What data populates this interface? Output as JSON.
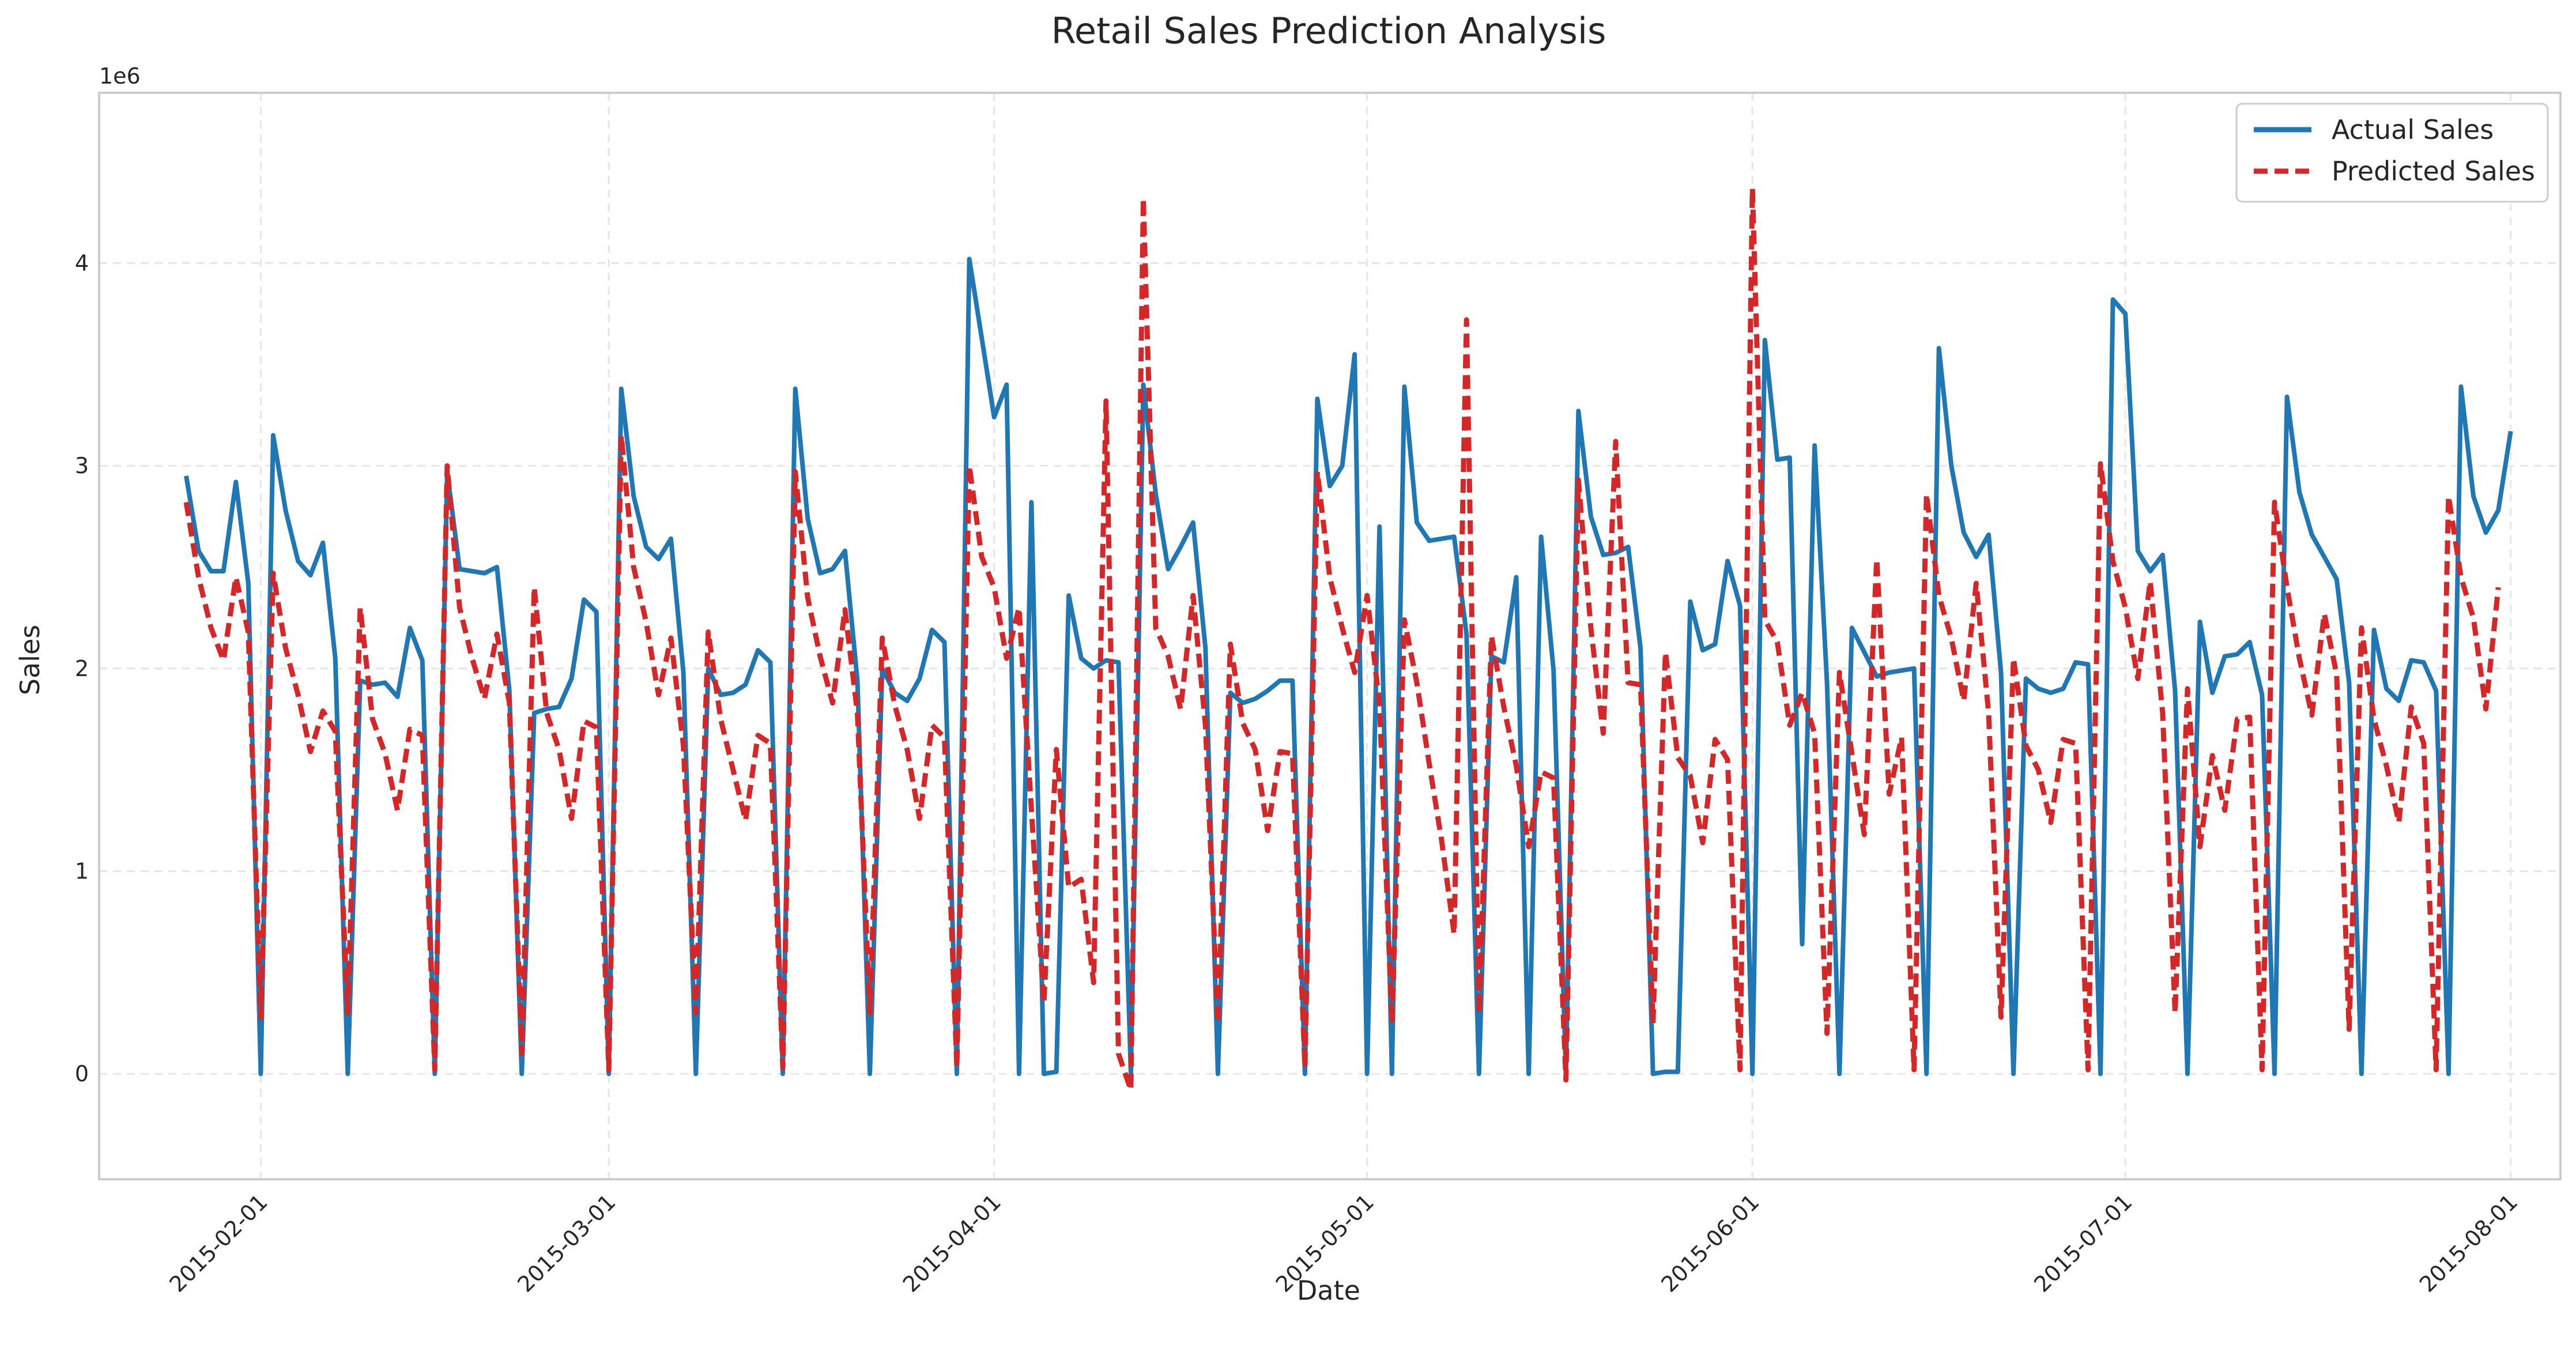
{
  "chart_data": {
    "type": "line",
    "title": "Retail Sales Prediction Analysis",
    "xlabel": "Date",
    "ylabel": "Sales",
    "y_multiplier_label": "1e6",
    "xlim": [
      "2015-01-19",
      "2015-08-05"
    ],
    "ylim": [
      -0.52,
      4.84
    ],
    "x_ticks": [
      "2015-02-01",
      "2015-03-01",
      "2015-04-01",
      "2015-05-01",
      "2015-06-01",
      "2015-07-01",
      "2015-08-01"
    ],
    "y_ticks": [
      0,
      1,
      2,
      3,
      4
    ],
    "grid": true,
    "legend_position": "top-right",
    "x_start": "2015-01-26",
    "series": [
      {
        "name": "Actual Sales",
        "color": "#1f77b4",
        "style": "solid",
        "values": [
          2.95,
          2.58,
          2.48,
          2.48,
          2.92,
          2.42,
          0,
          3.15,
          2.78,
          2.53,
          2.46,
          2.62,
          2.05,
          0,
          1.94,
          1.92,
          1.93,
          1.86,
          2.2,
          2.04,
          0,
          2.97,
          2.49,
          2.48,
          2.47,
          2.5,
          1.89,
          0,
          1.78,
          1.8,
          1.81,
          1.95,
          2.34,
          2.28,
          0,
          3.38,
          2.85,
          2.6,
          2.54,
          2.64,
          1.98,
          0,
          2.0,
          1.87,
          1.88,
          1.92,
          2.09,
          2.03,
          0,
          3.38,
          2.74,
          2.47,
          2.49,
          2.58,
          1.94,
          0,
          2.0,
          1.88,
          1.84,
          1.95,
          2.19,
          2.13,
          0,
          4.02,
          3.63,
          3.24,
          3.4,
          0,
          2.82,
          0,
          0.01,
          2.36,
          2.05,
          2.0,
          2.04,
          2.03,
          0,
          3.4,
          2.86,
          2.49,
          2.6,
          2.72,
          2.1,
          0,
          1.88,
          1.83,
          1.85,
          1.89,
          1.94,
          1.94,
          0,
          3.33,
          2.9,
          3.0,
          3.55,
          0,
          2.7,
          0,
          3.39,
          2.72,
          2.63,
          2.64,
          2.65,
          2.17,
          0,
          2.06,
          2.03,
          2.45,
          0,
          2.65,
          1.99,
          0,
          3.27,
          2.75,
          2.56,
          2.57,
          2.6,
          2.1,
          0,
          0.01,
          0.01,
          2.33,
          2.09,
          2.12,
          2.53,
          2.31,
          0,
          3.62,
          3.03,
          3.04,
          0.64,
          3.1,
          1.93,
          0,
          2.2,
          2.08,
          1.96,
          1.98,
          1.99,
          2.0,
          0,
          3.58,
          3.0,
          2.67,
          2.55,
          2.66,
          1.98,
          0,
          1.95,
          1.9,
          1.88,
          1.9,
          2.03,
          2.02,
          0,
          3.82,
          3.75,
          2.58,
          2.48,
          2.56,
          1.89,
          0,
          2.23,
          1.88,
          2.06,
          2.07,
          2.13,
          1.87,
          0,
          3.34,
          2.87,
          2.66,
          2.55,
          2.44,
          1.93,
          0,
          2.19,
          1.9,
          1.84,
          2.04,
          2.03,
          1.89,
          0,
          3.39,
          2.85,
          2.67,
          2.78,
          3.17
        ]
      },
      {
        "name": "Predicted Sales",
        "color": "#d62728",
        "style": "dashed",
        "values": [
          2.82,
          2.45,
          2.2,
          2.04,
          2.45,
          2.18,
          0.28,
          2.47,
          2.1,
          1.87,
          1.59,
          1.79,
          1.69,
          0.3,
          2.3,
          1.75,
          1.58,
          1.3,
          1.7,
          1.67,
          0.02,
          3.0,
          2.3,
          2.05,
          1.85,
          2.17,
          1.83,
          0.1,
          2.4,
          1.78,
          1.6,
          1.26,
          1.74,
          1.71,
          0.02,
          3.15,
          2.5,
          2.23,
          1.87,
          2.15,
          1.62,
          0.3,
          2.18,
          1.75,
          1.5,
          1.25,
          1.67,
          1.63,
          0.03,
          2.97,
          2.35,
          2.06,
          1.83,
          2.29,
          1.78,
          0.3,
          2.15,
          1.82,
          1.6,
          1.26,
          1.72,
          1.66,
          0.03,
          3.0,
          2.55,
          2.4,
          2.05,
          2.3,
          1.3,
          0.35,
          1.6,
          0.92,
          0.96,
          0.45,
          3.32,
          0.1,
          -0.08,
          4.32,
          2.2,
          2.06,
          1.8,
          2.36,
          1.72,
          0.25,
          2.12,
          1.73,
          1.6,
          1.2,
          1.59,
          1.58,
          0.03,
          2.97,
          2.45,
          2.2,
          1.98,
          2.36,
          1.82,
          0.25,
          2.24,
          1.93,
          1.53,
          1.15,
          0.69,
          3.72,
          0.3,
          2.16,
          1.81,
          1.52,
          1.12,
          1.49,
          1.46,
          -0.03,
          2.93,
          2.2,
          1.68,
          3.12,
          1.93,
          1.92,
          0.25,
          2.08,
          1.56,
          1.47,
          1.14,
          1.65,
          1.55,
          0.02,
          4.37,
          2.24,
          2.13,
          1.72,
          1.88,
          1.68,
          0.2,
          1.98,
          1.58,
          1.18,
          2.54,
          1.38,
          1.66,
          0.02,
          2.86,
          2.36,
          2.15,
          1.84,
          2.42,
          1.78,
          0.28,
          2.05,
          1.62,
          1.5,
          1.24,
          1.65,
          1.63,
          0.02,
          3.01,
          2.53,
          2.3,
          1.95,
          2.43,
          1.78,
          0.3,
          1.9,
          1.12,
          1.57,
          1.3,
          1.75,
          1.76,
          0.02,
          2.82,
          2.4,
          2.05,
          1.77,
          2.27,
          1.97,
          0.22,
          2.2,
          1.75,
          1.52,
          1.24,
          1.81,
          1.63,
          0.02,
          2.85,
          2.45,
          2.25,
          1.8,
          2.4
        ]
      }
    ]
  }
}
